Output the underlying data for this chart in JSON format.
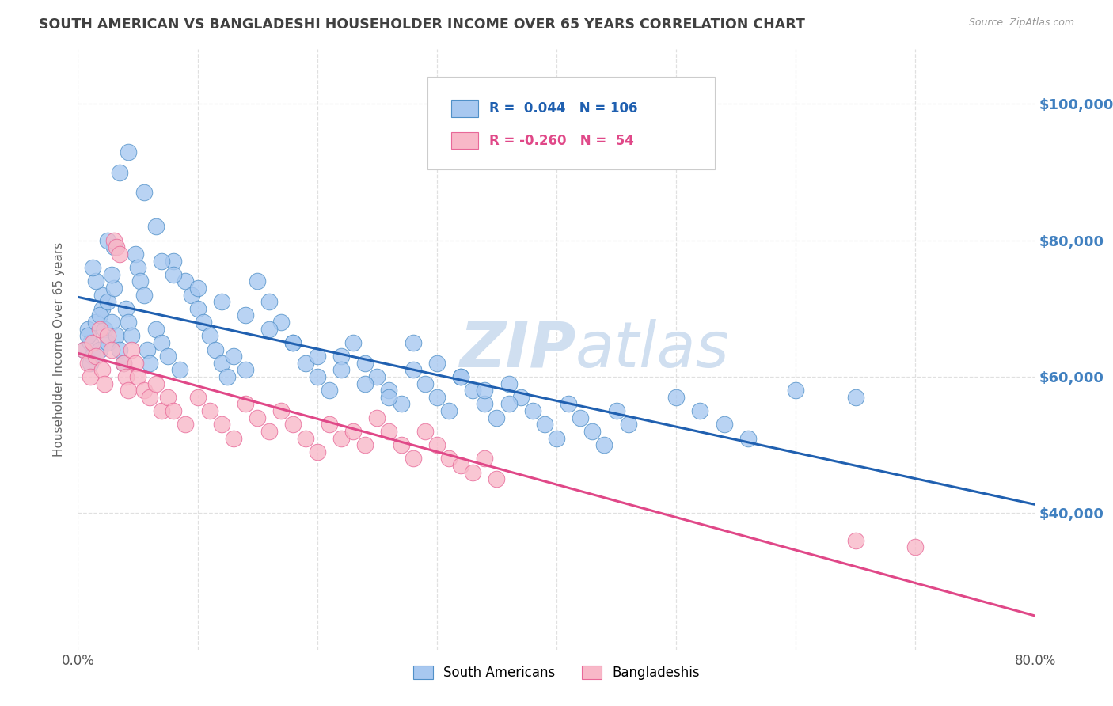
{
  "title": "SOUTH AMERICAN VS BANGLADESHI HOUSEHOLDER INCOME OVER 65 YEARS CORRELATION CHART",
  "source": "Source: ZipAtlas.com",
  "ylabel": "Householder Income Over 65 years",
  "xlim": [
    0.0,
    0.8
  ],
  "ylim": [
    20000,
    108000
  ],
  "yticks": [
    40000,
    60000,
    80000,
    100000
  ],
  "ytick_labels": [
    "$40,000",
    "$60,000",
    "$80,000",
    "$100,000"
  ],
  "blue_R": 0.044,
  "blue_N": 106,
  "pink_R": -0.26,
  "pink_N": 54,
  "blue_color": "#a8c8f0",
  "pink_color": "#f8b8c8",
  "blue_edge_color": "#5090c8",
  "pink_edge_color": "#e86898",
  "blue_line_color": "#2060b0",
  "pink_line_color": "#e04888",
  "title_color": "#404040",
  "right_label_color": "#4080c0",
  "watermark_color": "#d0dff0",
  "background_color": "#ffffff",
  "grid_color": "#e0e0e0",
  "legend_label_blue": "South Americans",
  "legend_label_pink": "Bangladeshis",
  "blue_scatter_x": [
    0.005,
    0.008,
    0.01,
    0.012,
    0.01,
    0.008,
    0.015,
    0.018,
    0.02,
    0.022,
    0.025,
    0.02,
    0.018,
    0.015,
    0.012,
    0.025,
    0.028,
    0.03,
    0.032,
    0.028,
    0.035,
    0.03,
    0.025,
    0.038,
    0.04,
    0.042,
    0.045,
    0.048,
    0.05,
    0.052,
    0.055,
    0.058,
    0.06,
    0.065,
    0.07,
    0.075,
    0.08,
    0.085,
    0.09,
    0.095,
    0.1,
    0.105,
    0.11,
    0.115,
    0.12,
    0.125,
    0.13,
    0.14,
    0.15,
    0.16,
    0.17,
    0.18,
    0.19,
    0.2,
    0.21,
    0.22,
    0.23,
    0.24,
    0.25,
    0.26,
    0.27,
    0.28,
    0.29,
    0.3,
    0.31,
    0.32,
    0.33,
    0.34,
    0.35,
    0.36,
    0.37,
    0.38,
    0.39,
    0.4,
    0.41,
    0.42,
    0.43,
    0.44,
    0.45,
    0.46,
    0.28,
    0.3,
    0.32,
    0.34,
    0.36,
    0.5,
    0.52,
    0.54,
    0.56,
    0.6,
    0.65,
    0.07,
    0.08,
    0.1,
    0.12,
    0.14,
    0.16,
    0.18,
    0.2,
    0.22,
    0.24,
    0.26,
    0.035,
    0.042,
    0.055,
    0.065
  ],
  "blue_scatter_y": [
    64000,
    67000,
    65000,
    63000,
    62000,
    66000,
    68000,
    64000,
    70000,
    67000,
    65000,
    72000,
    69000,
    74000,
    76000,
    71000,
    68000,
    73000,
    66000,
    75000,
    64000,
    79000,
    80000,
    62000,
    70000,
    68000,
    66000,
    78000,
    76000,
    74000,
    72000,
    64000,
    62000,
    67000,
    65000,
    63000,
    77000,
    61000,
    74000,
    72000,
    70000,
    68000,
    66000,
    64000,
    62000,
    60000,
    63000,
    61000,
    74000,
    71000,
    68000,
    65000,
    62000,
    60000,
    58000,
    63000,
    65000,
    62000,
    60000,
    58000,
    56000,
    61000,
    59000,
    57000,
    55000,
    60000,
    58000,
    56000,
    54000,
    59000,
    57000,
    55000,
    53000,
    51000,
    56000,
    54000,
    52000,
    50000,
    55000,
    53000,
    65000,
    62000,
    60000,
    58000,
    56000,
    57000,
    55000,
    53000,
    51000,
    58000,
    57000,
    77000,
    75000,
    73000,
    71000,
    69000,
    67000,
    65000,
    63000,
    61000,
    59000,
    57000,
    90000,
    93000,
    87000,
    82000
  ],
  "pink_scatter_x": [
    0.005,
    0.008,
    0.01,
    0.012,
    0.015,
    0.018,
    0.02,
    0.022,
    0.025,
    0.028,
    0.03,
    0.032,
    0.035,
    0.038,
    0.04,
    0.042,
    0.045,
    0.048,
    0.05,
    0.055,
    0.06,
    0.065,
    0.07,
    0.075,
    0.08,
    0.09,
    0.1,
    0.11,
    0.12,
    0.13,
    0.14,
    0.15,
    0.16,
    0.17,
    0.18,
    0.19,
    0.2,
    0.21,
    0.22,
    0.23,
    0.24,
    0.25,
    0.26,
    0.27,
    0.28,
    0.29,
    0.3,
    0.31,
    0.32,
    0.33,
    0.34,
    0.35,
    0.65,
    0.7
  ],
  "pink_scatter_y": [
    64000,
    62000,
    60000,
    65000,
    63000,
    67000,
    61000,
    59000,
    66000,
    64000,
    80000,
    79000,
    78000,
    62000,
    60000,
    58000,
    64000,
    62000,
    60000,
    58000,
    57000,
    59000,
    55000,
    57000,
    55000,
    53000,
    57000,
    55000,
    53000,
    51000,
    56000,
    54000,
    52000,
    55000,
    53000,
    51000,
    49000,
    53000,
    51000,
    52000,
    50000,
    54000,
    52000,
    50000,
    48000,
    52000,
    50000,
    48000,
    47000,
    46000,
    48000,
    45000,
    36000,
    35000
  ]
}
